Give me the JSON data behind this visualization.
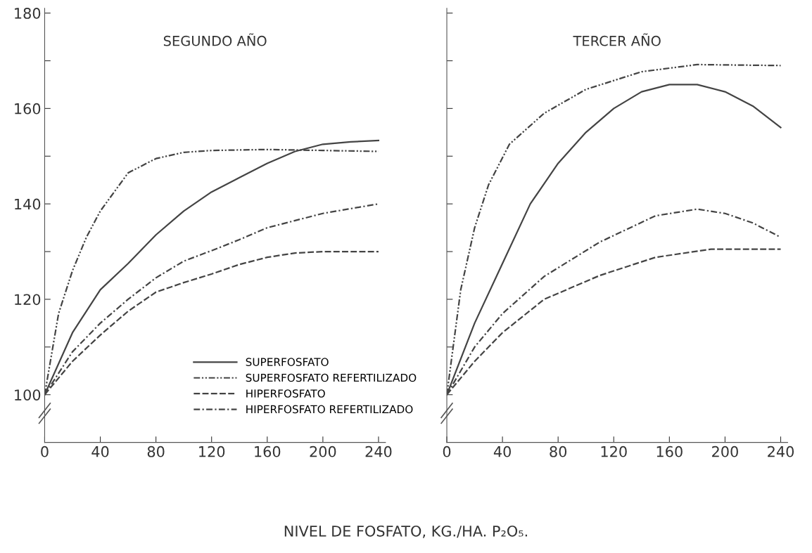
{
  "chart_data": [
    {
      "type": "line",
      "title": "SEGUNDO AÑO",
      "xlabel": "NIVEL DE FOSFATO, KG./HA. P₂O₅.",
      "xlim": [
        0,
        245
      ],
      "xticks": [
        0,
        40,
        80,
        120,
        160,
        200,
        240
      ],
      "ylim": [
        90,
        181
      ],
      "yticks": [
        100,
        {
          "value": 110,
          "label": null
        },
        120,
        {
          "value": 130,
          "label": null
        },
        140,
        {
          "value": 150,
          "label": null
        },
        160,
        {
          "value": 170,
          "label": null
        },
        180
      ],
      "grid": false,
      "legend": "bottom right",
      "marker": "none",
      "series": [
        {
          "name": "SUPERFOSFATO",
          "color": "#444444",
          "line_style": "solid",
          "x": [
            0,
            20,
            40,
            60,
            80,
            100,
            120,
            140,
            160,
            180,
            200,
            220,
            240
          ],
          "values": [
            100,
            113,
            122,
            127.5,
            133.5,
            138.5,
            142.5,
            145.5,
            148.5,
            151,
            152.5,
            153,
            153.3
          ]
        },
        {
          "name": "SUPERFOSFATO REFERTILIZADO",
          "color": "#444444",
          "line_style": "dashdotdot",
          "x": [
            0,
            10,
            20,
            30,
            40,
            60,
            80,
            100,
            120,
            160,
            200,
            240
          ],
          "values": [
            100,
            117,
            126,
            133,
            138.5,
            146.5,
            149.5,
            150.8,
            151.2,
            151.4,
            151.2,
            151
          ]
        },
        {
          "name": "HIPERFOSFATO",
          "color": "#444444",
          "line_style": "dashed",
          "x": [
            0,
            20,
            40,
            60,
            80,
            100,
            120,
            140,
            160,
            180,
            200,
            240
          ],
          "values": [
            100,
            107,
            112.5,
            117.5,
            121.5,
            123.5,
            125.3,
            127.3,
            128.8,
            129.7,
            130,
            130
          ]
        },
        {
          "name": "HIPERFOSFATO REFERTILIZADO",
          "color": "#444444",
          "line_style": "dashdot",
          "x": [
            0,
            20,
            40,
            60,
            80,
            100,
            120,
            140,
            160,
            180,
            200,
            220,
            240
          ],
          "values": [
            100,
            109,
            115,
            120,
            124.5,
            128,
            130.2,
            132.5,
            135,
            136.5,
            138,
            139,
            140
          ]
        }
      ]
    },
    {
      "type": "line",
      "title": "TERCER AÑO",
      "xlim": [
        0,
        245
      ],
      "xticks": [
        0,
        40,
        80,
        120,
        160,
        200,
        240
      ],
      "ylim": [
        90,
        181
      ],
      "yticks": [
        100,
        110,
        120,
        130,
        140,
        150,
        160,
        170,
        180
      ],
      "tick_labels": "x",
      "grid": false,
      "marker": "none",
      "series": [
        {
          "color": "#444444",
          "line_style": "solid",
          "x": [
            0,
            20,
            40,
            60,
            80,
            100,
            120,
            140,
            160,
            180,
            200,
            220,
            240
          ],
          "values": [
            100,
            115,
            127.5,
            140,
            148.5,
            155,
            160,
            163.5,
            165,
            165,
            163.5,
            160.5,
            156
          ]
        },
        {
          "color": "#444444",
          "line_style": "dashdotdot",
          "x": [
            0,
            10,
            20,
            30,
            45,
            70,
            100,
            140,
            180,
            240
          ],
          "values": [
            100,
            122,
            135,
            144,
            152.5,
            159,
            164,
            167.7,
            169.2,
            169
          ]
        },
        {
          "color": "#444444",
          "line_style": "dashed",
          "x": [
            0,
            20,
            40,
            70,
            110,
            150,
            190,
            240
          ],
          "values": [
            100,
            107,
            113,
            120,
            125,
            128.8,
            130.5,
            130.5
          ]
        },
        {
          "color": "#444444",
          "line_style": "dashdot",
          "x": [
            0,
            20,
            40,
            70,
            110,
            150,
            180,
            200,
            220,
            240
          ],
          "values": [
            100,
            110,
            117,
            124.8,
            132,
            137.5,
            138.9,
            138,
            136,
            133
          ]
        }
      ]
    }
  ]
}
